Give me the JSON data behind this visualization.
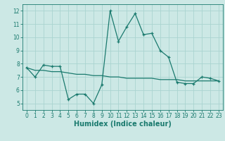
{
  "line1_x": [
    0,
    1,
    2,
    3,
    4,
    5,
    6,
    7,
    8,
    9,
    10,
    11,
    12,
    13,
    14,
    15,
    16,
    17,
    18,
    19,
    20,
    21,
    22,
    23
  ],
  "line1_y": [
    7.7,
    7.0,
    7.9,
    7.8,
    7.8,
    5.3,
    5.7,
    5.7,
    5.0,
    6.4,
    12.0,
    9.7,
    10.8,
    11.8,
    10.2,
    10.3,
    9.0,
    8.5,
    6.6,
    6.5,
    6.5,
    7.0,
    6.9,
    6.7
  ],
  "line2_x": [
    0,
    1,
    2,
    3,
    4,
    5,
    6,
    7,
    8,
    9,
    10,
    11,
    12,
    13,
    14,
    15,
    16,
    17,
    18,
    19,
    20,
    21,
    22,
    23
  ],
  "line2_y": [
    7.7,
    7.5,
    7.5,
    7.4,
    7.4,
    7.3,
    7.2,
    7.2,
    7.1,
    7.1,
    7.0,
    7.0,
    6.9,
    6.9,
    6.9,
    6.9,
    6.8,
    6.8,
    6.8,
    6.7,
    6.7,
    6.7,
    6.7,
    6.7
  ],
  "line_color": "#1a7a6e",
  "bg_color": "#cce8e5",
  "grid_color": "#aad4d0",
  "xlabel": "Humidex (Indice chaleur)",
  "ylim": [
    4.5,
    12.5
  ],
  "xlim": [
    -0.5,
    23.5
  ],
  "yticks": [
    5,
    6,
    7,
    8,
    9,
    10,
    11,
    12
  ],
  "xticks": [
    0,
    1,
    2,
    3,
    4,
    5,
    6,
    7,
    8,
    9,
    10,
    11,
    12,
    13,
    14,
    15,
    16,
    17,
    18,
    19,
    20,
    21,
    22,
    23
  ],
  "tick_fontsize": 5.5,
  "xlabel_fontsize": 7
}
